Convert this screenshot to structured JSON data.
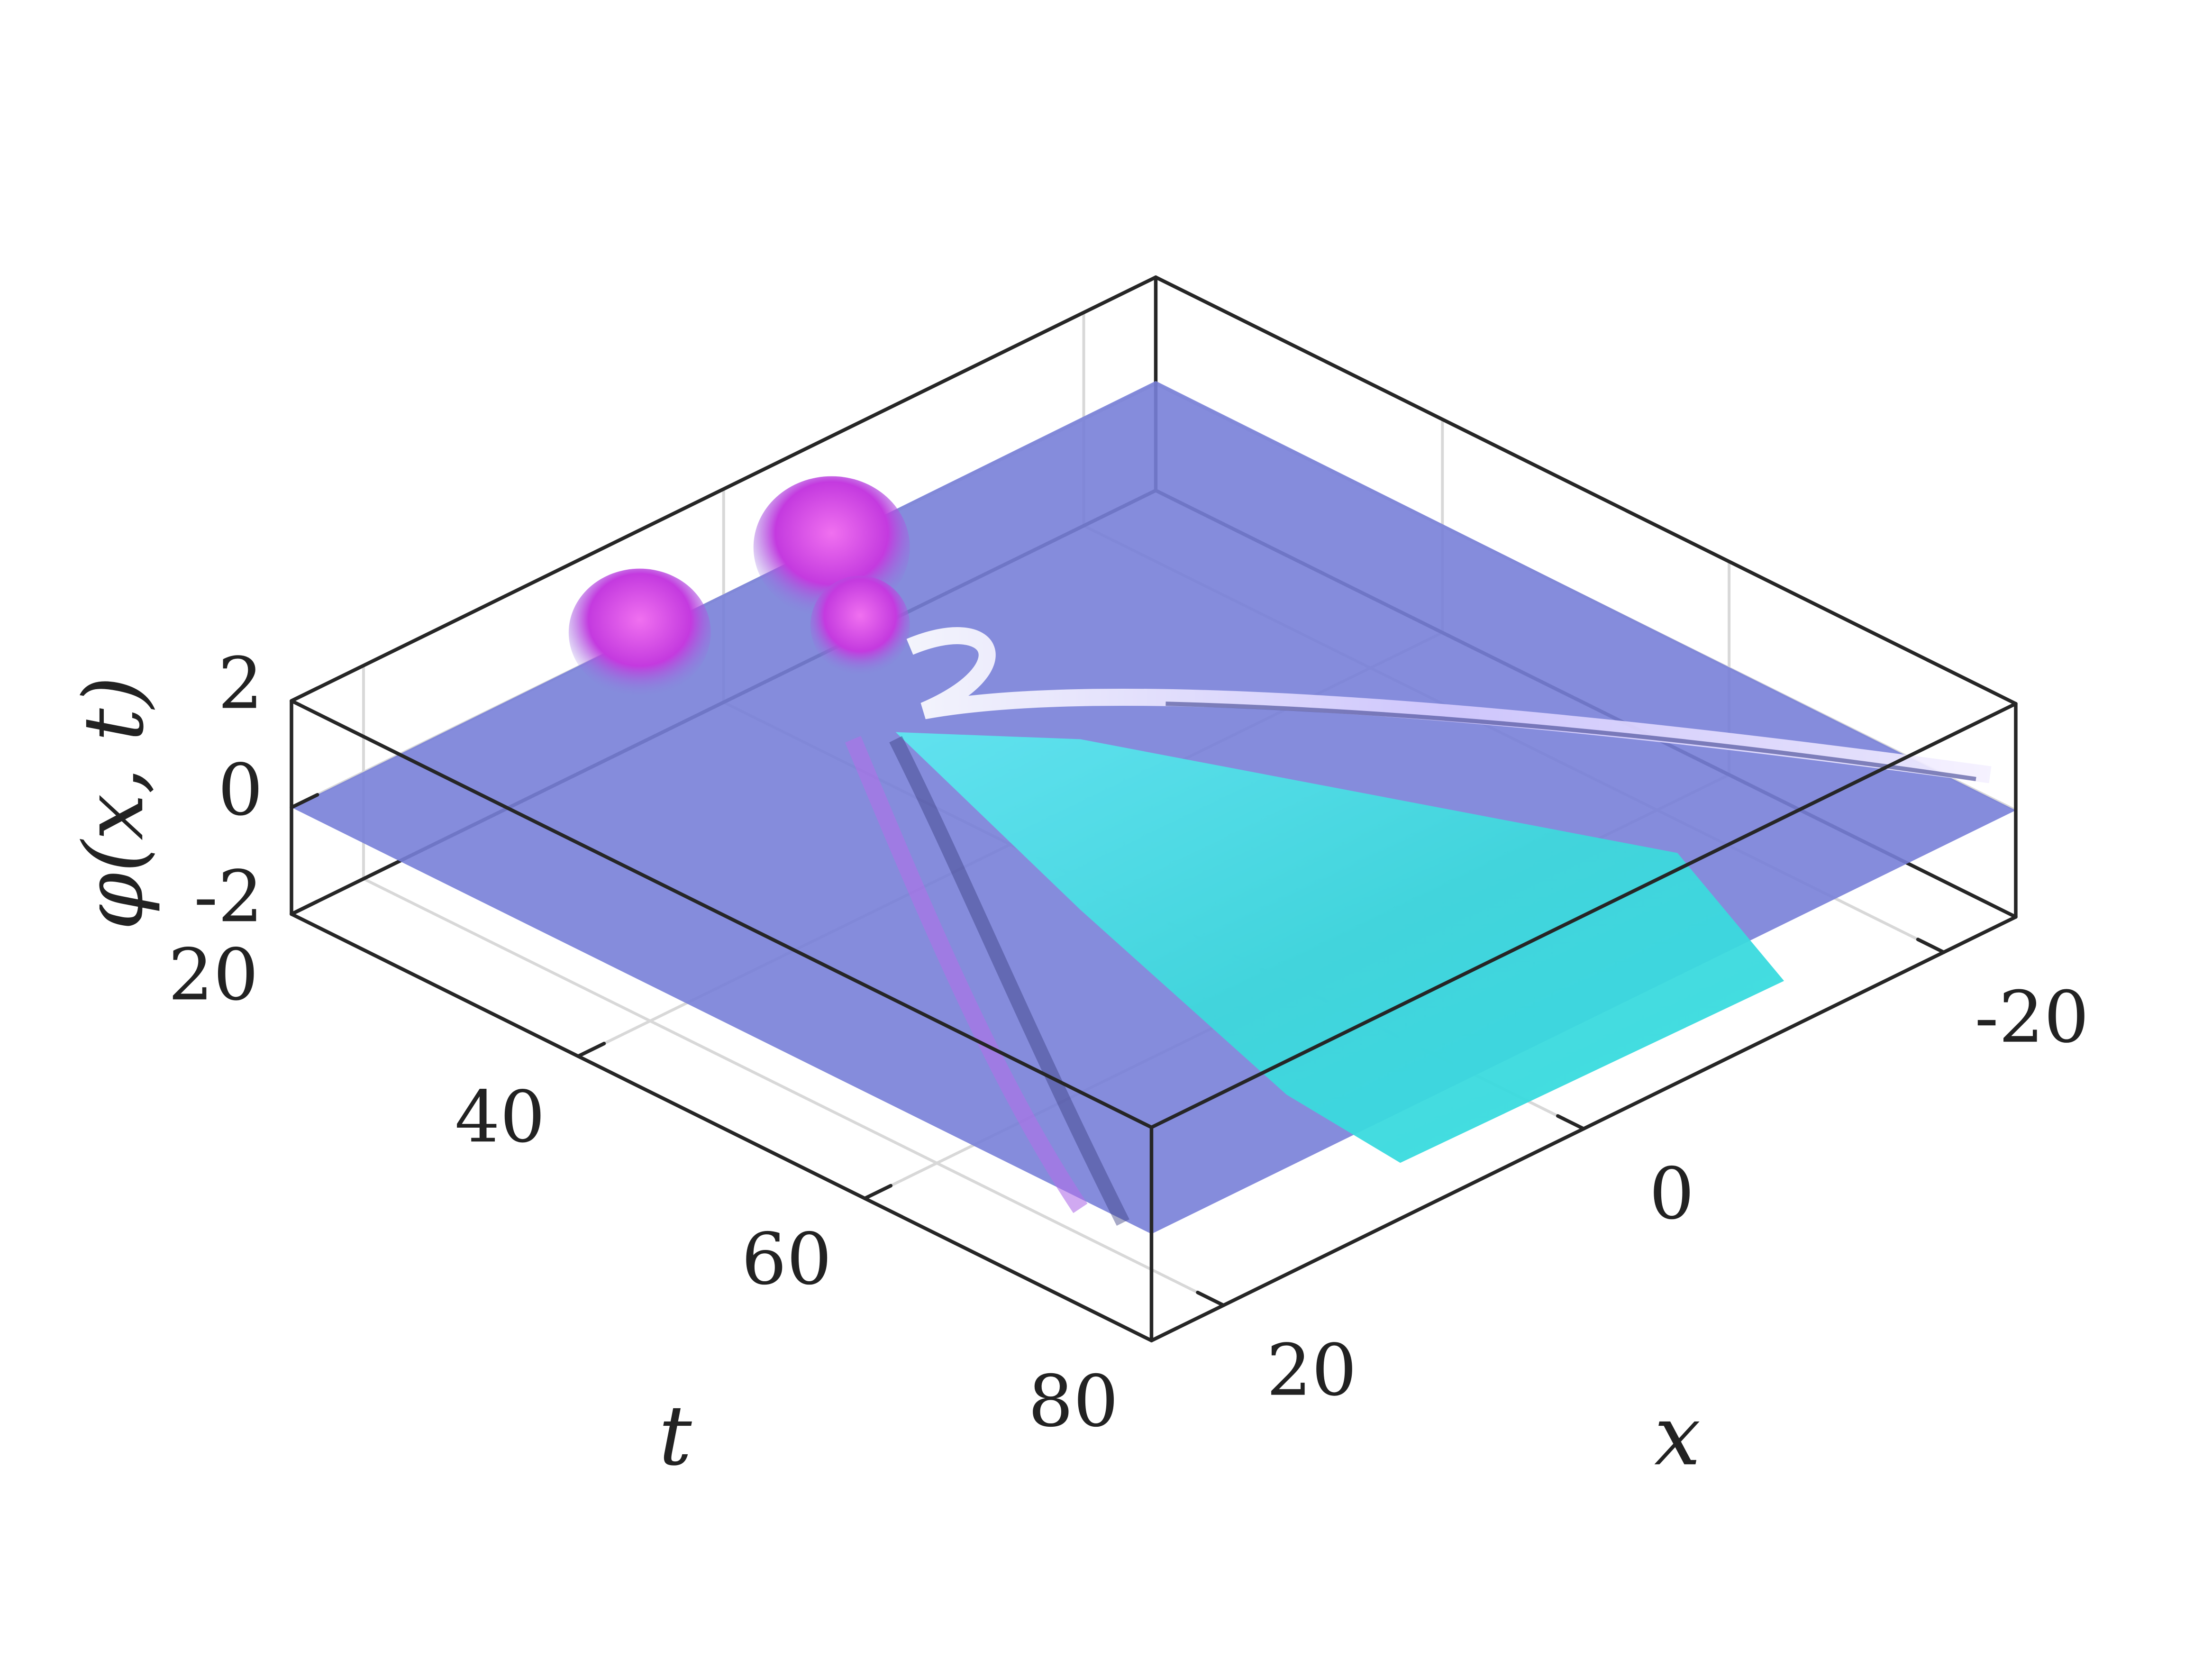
{
  "chart_data": {
    "type": "surface",
    "xlabel": "x",
    "ylabel": "t",
    "zlabel": "φ(x, t)",
    "xlim": [
      -24,
      24
    ],
    "xticks": [
      -20,
      0,
      20
    ],
    "ylim": [
      20,
      80
    ],
    "yticks": [
      20,
      40,
      60,
      80
    ],
    "zlim": [
      -2,
      2
    ],
    "zticks": [
      -2,
      0,
      2
    ],
    "grid": true
  }
}
